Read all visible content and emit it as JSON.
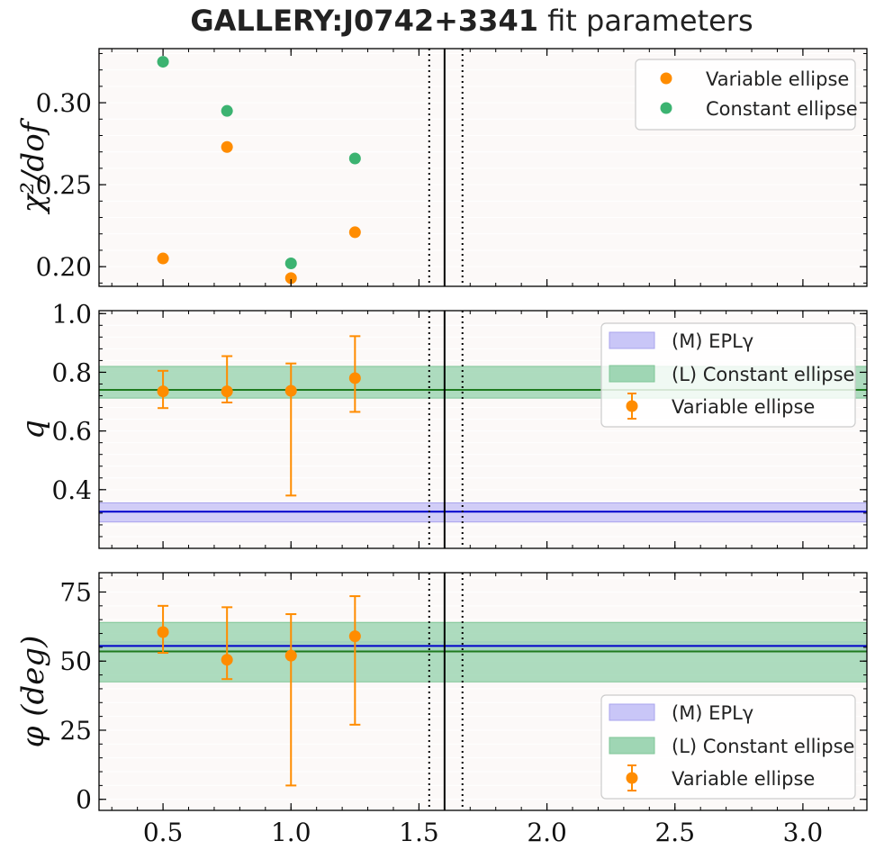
{
  "figure": {
    "title_bold": "GALLERY:J0742+3341",
    "title_rest": " fit parameters"
  },
  "colors": {
    "variable": "#ff8c00",
    "constant": "#3cb371",
    "model_band": "#c9c6f7",
    "model_line": "#0000cc",
    "light_band": "#9fd6b4",
    "light_line": "#1f7a1f",
    "panel_bg": "#fcf9f8"
  },
  "chart_data": [
    {
      "type": "scatter",
      "ylabel": "χ²/dof",
      "xlim": [
        0.25,
        3.25
      ],
      "ylim": [
        0.188,
        0.333
      ],
      "yticks": [
        0.2,
        0.25,
        0.3
      ],
      "ytick_labels": [
        "0.20",
        "0.25",
        "0.30"
      ],
      "vlines": {
        "solid": 1.6,
        "dotted": [
          1.54,
          1.67
        ]
      },
      "legend": {
        "position": "top-right",
        "entries": [
          "Variable ellipse",
          "Constant ellipse"
        ]
      },
      "series": [
        {
          "name": "Variable ellipse",
          "color": "#ff8c00",
          "x": [
            0.5,
            0.75,
            1.0,
            1.25
          ],
          "y": [
            0.205,
            0.273,
            0.193,
            0.221
          ]
        },
        {
          "name": "Constant ellipse",
          "color": "#3cb371",
          "x": [
            0.5,
            0.75,
            1.0,
            1.25
          ],
          "y": [
            0.325,
            0.295,
            0.202,
            0.266
          ]
        }
      ]
    },
    {
      "type": "scatter",
      "ylabel": "q",
      "xlim": [
        0.25,
        3.25
      ],
      "ylim": [
        0.2,
        1.01
      ],
      "yticks": [
        0.4,
        0.6,
        0.8,
        1.0
      ],
      "ytick_labels": [
        "0.4",
        "0.6",
        "0.8",
        "1.0"
      ],
      "vlines": {
        "solid": 1.6,
        "dotted": [
          1.54,
          1.67
        ]
      },
      "bands": [
        {
          "name": "(M) EPLγ",
          "color": "#c9c6f7",
          "edge": "#a9a4ee",
          "line_color": "#0000cc",
          "value": 0.325,
          "low": 0.29,
          "high": 0.355
        },
        {
          "name": "(L) Constant ellipse",
          "color": "#9fd6b4",
          "edge": "#7fc697",
          "line_color": "#1f7a1f",
          "value": 0.74,
          "low": 0.712,
          "high": 0.82
        }
      ],
      "legend": {
        "position": "top-right",
        "entries": [
          "(M) EPLγ",
          "(L) Constant ellipse",
          "Variable ellipse"
        ]
      },
      "series": [
        {
          "name": "Variable ellipse",
          "color": "#ff8c00",
          "x": [
            0.5,
            0.75,
            1.0,
            1.25
          ],
          "y": [
            0.735,
            0.735,
            0.737,
            0.78
          ],
          "y_low": [
            0.678,
            0.697,
            0.38,
            0.665
          ],
          "y_high": [
            0.805,
            0.855,
            0.83,
            0.923
          ]
        }
      ]
    },
    {
      "type": "scatter",
      "ylabel": "φ (deg)",
      "xlim": [
        0.25,
        3.25
      ],
      "ylim": [
        -4,
        82
      ],
      "yticks": [
        0,
        25,
        50,
        75
      ],
      "ytick_labels": [
        "0",
        "25",
        "50",
        "75"
      ],
      "xticks": [
        0.5,
        1.0,
        1.5,
        2.0,
        2.5,
        3.0
      ],
      "xtick_labels": [
        "0.5",
        "1.0",
        "1.5",
        "2.0",
        "2.5",
        "3.0"
      ],
      "vlines": {
        "solid": 1.6,
        "dotted": [
          1.54,
          1.67
        ]
      },
      "bands": [
        {
          "name": "(M) EPLγ",
          "color": "#c9c6f7",
          "edge": "#a9a4ee",
          "line_color": "#0000cc",
          "value": 55.5,
          "low": 54,
          "high": 57
        },
        {
          "name": "(L) Constant ellipse",
          "color": "#9fd6b4",
          "edge": "#7fc697",
          "line_color": "#1f7a1f",
          "value": 53.5,
          "low": 42.5,
          "high": 64
        }
      ],
      "legend": {
        "position": "lower-right",
        "entries": [
          "(M) EPLγ",
          "(L) Constant ellipse",
          "Variable ellipse"
        ]
      },
      "series": [
        {
          "name": "Variable ellipse",
          "color": "#ff8c00",
          "x": [
            0.5,
            0.75,
            1.0,
            1.25
          ],
          "y": [
            60.5,
            50.5,
            52,
            59
          ],
          "y_low": [
            53,
            43.5,
            5,
            27
          ],
          "y_high": [
            70,
            69.5,
            67,
            73.5
          ]
        }
      ]
    }
  ]
}
